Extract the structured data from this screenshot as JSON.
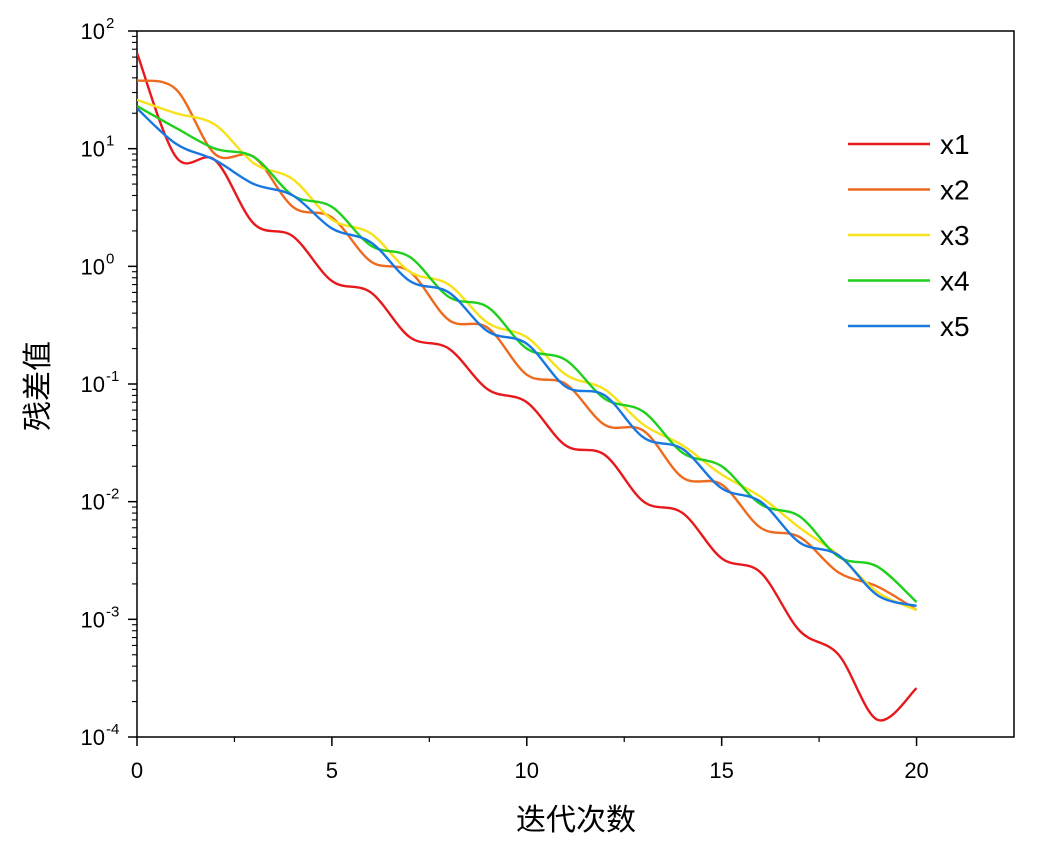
{
  "chart_data": {
    "type": "line",
    "title": "",
    "xlabel": "迭代次数",
    "ylabel": "残差值",
    "xlim": [
      0,
      22.5
    ],
    "xticks": [
      0,
      5,
      10,
      15,
      20
    ],
    "ylim": [
      0.0001,
      100
    ],
    "yscale": "log",
    "yticks": [
      {
        "value": 0.0001,
        "base": "10",
        "exp": "-4"
      },
      {
        "value": 0.001,
        "base": "10",
        "exp": "-3"
      },
      {
        "value": 0.01,
        "base": "10",
        "exp": "-2"
      },
      {
        "value": 0.1,
        "base": "10",
        "exp": "-1"
      },
      {
        "value": 1,
        "base": "10",
        "exp": "0"
      },
      {
        "value": 10,
        "base": "10",
        "exp": "1"
      },
      {
        "value": 100,
        "base": "10",
        "exp": "2"
      }
    ],
    "grid": false,
    "legend_position": "top-right",
    "x": [
      0,
      1,
      2,
      3,
      4,
      5,
      6,
      7,
      8,
      9,
      10,
      11,
      12,
      13,
      14,
      15,
      16,
      17,
      18,
      19,
      20
    ],
    "series": [
      {
        "name": "x1",
        "color": "#e8191c",
        "values": [
          65,
          8.5,
          8,
          2.3,
          1.8,
          0.75,
          0.6,
          0.25,
          0.2,
          0.09,
          0.07,
          0.03,
          0.025,
          0.01,
          0.008,
          0.0033,
          0.0025,
          0.0008,
          0.0005,
          0.00014,
          0.00026
        ]
      },
      {
        "name": "x2",
        "color": "#ee6a1e",
        "values": [
          38,
          32,
          9,
          8.5,
          3.2,
          2.6,
          1.1,
          0.9,
          0.35,
          0.3,
          0.12,
          0.1,
          0.045,
          0.04,
          0.016,
          0.014,
          0.006,
          0.005,
          0.0025,
          0.0019,
          0.0012
        ]
      },
      {
        "name": "x3",
        "color": "#f7e11a",
        "values": [
          26,
          20,
          16,
          7.5,
          5.5,
          2.5,
          1.9,
          0.9,
          0.7,
          0.33,
          0.25,
          0.12,
          0.09,
          0.045,
          0.03,
          0.017,
          0.011,
          0.006,
          0.0035,
          0.0017,
          0.0012
        ]
      },
      {
        "name": "x4",
        "color": "#1fd01c",
        "values": [
          23,
          15,
          10,
          8.5,
          4.0,
          3.2,
          1.5,
          1.2,
          0.55,
          0.45,
          0.2,
          0.16,
          0.075,
          0.058,
          0.026,
          0.02,
          0.0095,
          0.0075,
          0.0034,
          0.0028,
          0.0014
        ]
      },
      {
        "name": "x5",
        "color": "#1878e0",
        "values": [
          22,
          11,
          8,
          5,
          4,
          2.1,
          1.6,
          0.75,
          0.6,
          0.28,
          0.22,
          0.095,
          0.08,
          0.035,
          0.028,
          0.013,
          0.01,
          0.0045,
          0.0035,
          0.0016,
          0.0013
        ]
      }
    ]
  }
}
